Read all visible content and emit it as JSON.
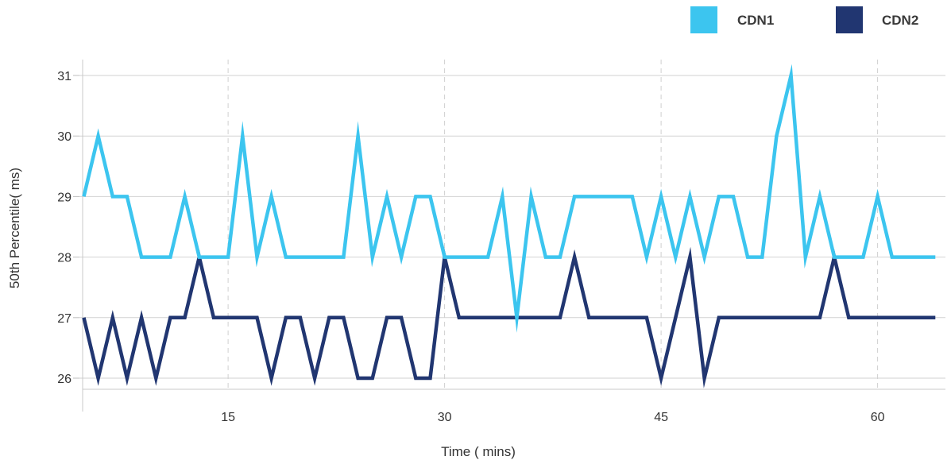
{
  "chart_data": {
    "type": "line",
    "xlabel": "Time ( mins)",
    "ylabel": "50th Percentile(      ms)",
    "xticks": [
      15,
      30,
      45,
      60
    ],
    "yticks": [
      26,
      27,
      28,
      29,
      30,
      31
    ],
    "xlim": [
      4.7,
      64.7
    ],
    "ylim": [
      25.7,
      31.2
    ],
    "grid": {
      "x": "dashed",
      "y": "solid"
    },
    "legend_position": "top-right",
    "x": [
      5,
      6,
      7,
      8,
      9,
      10,
      11,
      12,
      13,
      14,
      15,
      16,
      17,
      18,
      19,
      20,
      21,
      22,
      23,
      24,
      25,
      26,
      27,
      28,
      29,
      30,
      31,
      32,
      33,
      34,
      35,
      36,
      37,
      38,
      39,
      40,
      41,
      42,
      43,
      44,
      45,
      46,
      47,
      48,
      49,
      50,
      51,
      52,
      53,
      54,
      55,
      56,
      57,
      58,
      59,
      60,
      61,
      62,
      63,
      64
    ],
    "series": [
      {
        "name": "CDN1",
        "color": "#3cc5ef",
        "values": [
          29,
          30,
          29,
          29,
          28,
          28,
          28,
          29,
          28,
          28,
          28,
          30,
          28,
          29,
          28,
          28,
          28,
          28,
          28,
          30,
          28,
          29,
          28,
          29,
          29,
          28,
          28,
          28,
          28,
          29,
          27,
          29,
          28,
          28,
          29,
          29,
          29,
          29,
          29,
          28,
          29,
          28,
          29,
          28,
          29,
          29,
          28,
          28,
          30,
          31,
          28,
          29,
          28,
          28,
          28,
          29,
          28,
          28,
          28,
          28
        ]
      },
      {
        "name": "CDN2",
        "color": "#213671",
        "values": [
          27,
          26,
          27,
          26,
          27,
          26,
          27,
          27,
          28,
          27,
          27,
          27,
          27,
          26,
          27,
          27,
          26,
          27,
          27,
          26,
          26,
          27,
          27,
          26,
          26,
          28,
          27,
          27,
          27,
          27,
          27,
          27,
          27,
          27,
          28,
          27,
          27,
          27,
          27,
          27,
          26,
          27,
          28,
          26,
          27,
          27,
          27,
          27,
          27,
          27,
          27,
          27,
          28,
          27,
          27,
          27,
          27,
          27,
          27,
          27
        ]
      }
    ]
  }
}
